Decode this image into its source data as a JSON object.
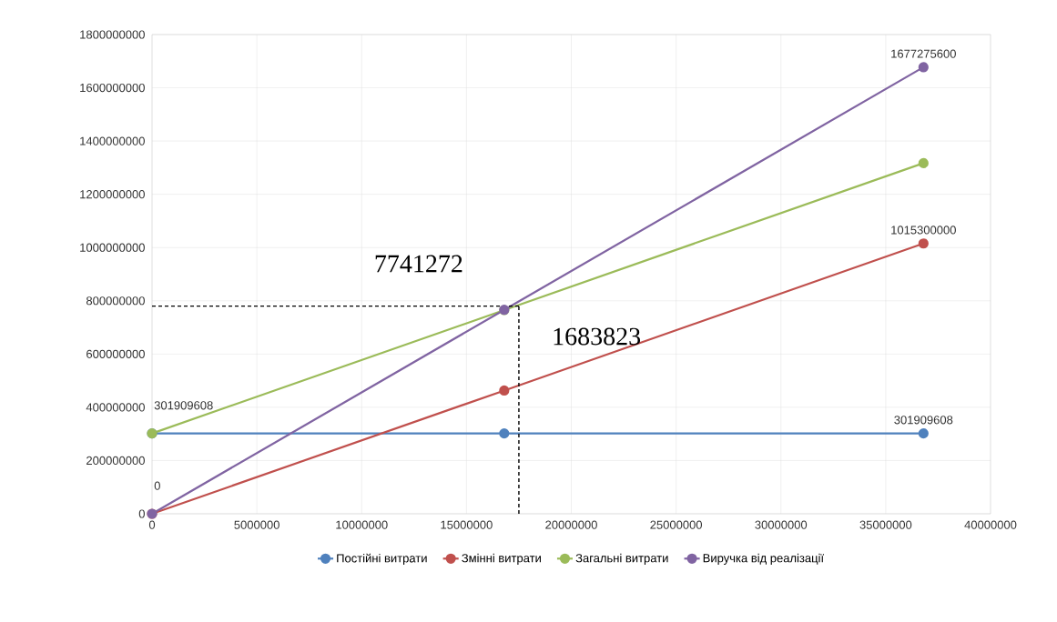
{
  "chart_data": {
    "type": "line",
    "x": [
      0,
      16800000,
      36800000
    ],
    "series": [
      {
        "name": "Постійні витрати",
        "color": "#4f81bd",
        "values": [
          301909608,
          301909608,
          301909608
        ],
        "value_labels": [
          null,
          null,
          "301909608"
        ]
      },
      {
        "name": "Змінні витрати",
        "color": "#c0504d",
        "values": [
          0,
          463000000,
          1015300000
        ],
        "value_labels": [
          "0",
          null,
          "1015300000"
        ]
      },
      {
        "name": "Загальні витрати",
        "color": "#9bbb59",
        "values": [
          301909608,
          765000000,
          1317000000
        ],
        "value_labels": [
          "301909608",
          null,
          null
        ]
      },
      {
        "name": "Виручка від реалізації",
        "color": "#8064a2",
        "values": [
          0,
          766000000,
          1677275600
        ],
        "value_labels": [
          null,
          null,
          "1677275600"
        ]
      }
    ],
    "ref_lines": [
      {
        "axis": "x",
        "value": 17500000,
        "color": "#000000",
        "line_style": "dashed"
      },
      {
        "axis": "y",
        "value": 780000000,
        "color": "#000000",
        "line_style": "dashed"
      }
    ],
    "annotations": [
      "7741272",
      "1683823"
    ],
    "xlim": [
      0,
      40000000
    ],
    "xticks": [
      0,
      5000000,
      10000000,
      15000000,
      20000000,
      25000000,
      30000000,
      35000000,
      40000000
    ],
    "ylim": [
      0,
      1800000000
    ],
    "yticks": [
      0,
      200000000,
      400000000,
      600000000,
      800000000,
      1000000000,
      1200000000,
      1400000000,
      1600000000,
      1800000000
    ],
    "grid": true,
    "legend": "bottom",
    "marker": "circle",
    "line_style": "solid"
  }
}
